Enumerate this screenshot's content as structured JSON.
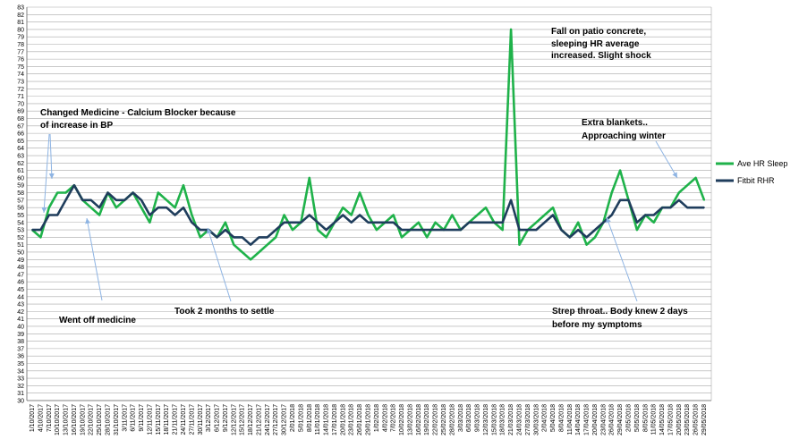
{
  "colors": {
    "ave": "#1fb24a",
    "fitbit": "#1f3d5c",
    "grid": "#a8a8a8",
    "arrow": "#8eb4e3",
    "axis": "#808080"
  },
  "chart_data": {
    "type": "line",
    "ylim": [
      30,
      83
    ],
    "ytick_step": 1,
    "grid": true,
    "legend_position": "right",
    "x": [
      "1/10/2017",
      "4/10/2017",
      "7/10/2017",
      "10/10/2017",
      "13/10/2017",
      "16/10/2017",
      "19/10/2017",
      "22/10/2017",
      "25/10/2017",
      "28/10/2017",
      "31/10/2017",
      "3/11/2017",
      "6/11/2017",
      "9/11/2017",
      "12/11/2017",
      "15/11/2017",
      "18/11/2017",
      "21/11/2017",
      "24/11/2017",
      "27/11/2017",
      "30/11/2017",
      "3/12/2017",
      "6/12/2017",
      "9/12/2017",
      "12/12/2017",
      "15/12/2017",
      "18/12/2017",
      "21/12/2017",
      "24/12/2017",
      "27/12/2017",
      "30/12/2017",
      "2/01/2018",
      "5/01/2018",
      "8/01/2018",
      "11/01/2018",
      "14/01/2018",
      "17/01/2018",
      "20/01/2018",
      "23/01/2018",
      "26/01/2018",
      "29/01/2018",
      "1/02/2018",
      "4/02/2018",
      "7/02/2018",
      "10/02/2018",
      "13/02/2018",
      "16/02/2018",
      "19/02/2018",
      "22/02/2018",
      "25/02/2018",
      "28/02/2018",
      "3/03/2018",
      "6/03/2018",
      "9/03/2018",
      "12/03/2018",
      "15/03/2018",
      "18/03/2018",
      "21/03/2018",
      "24/03/2018",
      "27/03/2018",
      "30/03/2018",
      "2/04/2018",
      "5/04/2018",
      "8/04/2018",
      "11/04/2018",
      "14/04/2018",
      "17/04/2018",
      "20/04/2018",
      "23/04/2018",
      "26/04/2018",
      "29/04/2018",
      "2/05/2018",
      "5/05/2018",
      "8/05/2018",
      "11/05/2018",
      "14/05/2018",
      "17/05/2018",
      "20/05/2018",
      "23/05/2018",
      "26/05/2018",
      "29/05/2018"
    ],
    "series": [
      {
        "name": "Ave HR Sleep",
        "values": [
          53,
          52,
          56,
          58,
          58,
          59,
          57,
          56,
          55,
          58,
          56,
          57,
          58,
          56,
          54,
          58,
          57,
          56,
          59,
          55,
          52,
          53,
          52,
          54,
          51,
          50,
          49,
          50,
          51,
          52,
          55,
          53,
          54,
          60,
          53,
          52,
          54,
          56,
          55,
          58,
          55,
          53,
          54,
          55,
          52,
          53,
          54,
          52,
          54,
          53,
          55,
          53,
          54,
          55,
          56,
          54,
          53,
          80,
          51,
          53,
          54,
          55,
          56,
          53,
          52,
          54,
          51,
          52,
          54,
          58,
          61,
          57,
          53,
          55,
          54,
          56,
          56,
          58,
          59,
          60,
          57
        ]
      },
      {
        "name": "Fitbit RHR",
        "values": [
          53,
          53,
          55,
          55,
          57,
          59,
          57,
          57,
          56,
          58,
          57,
          57,
          58,
          57,
          55,
          56,
          56,
          55,
          56,
          54,
          53,
          53,
          52,
          53,
          52,
          52,
          51,
          52,
          52,
          53,
          54,
          54,
          54,
          55,
          54,
          53,
          54,
          55,
          54,
          55,
          54,
          54,
          54,
          54,
          53,
          53,
          53,
          53,
          53,
          53,
          53,
          53,
          54,
          54,
          54,
          54,
          54,
          57,
          53,
          53,
          53,
          54,
          55,
          53,
          52,
          53,
          52,
          53,
          54,
          55,
          57,
          57,
          54,
          55,
          55,
          56,
          56,
          57,
          56,
          56,
          56
        ]
      }
    ],
    "annotations": [
      "Changed Medicine - Calcium Blocker because",
      "of increase in BP",
      "Went off medicine",
      "Took 2 months to settle",
      "Fall on patio concrete,",
      "sleeping HR average",
      "increased. Slight shock",
      "Extra blankets..",
      "Approaching winter",
      "Strep throat.. Body knew 2 days",
      "before my symptoms"
    ]
  }
}
